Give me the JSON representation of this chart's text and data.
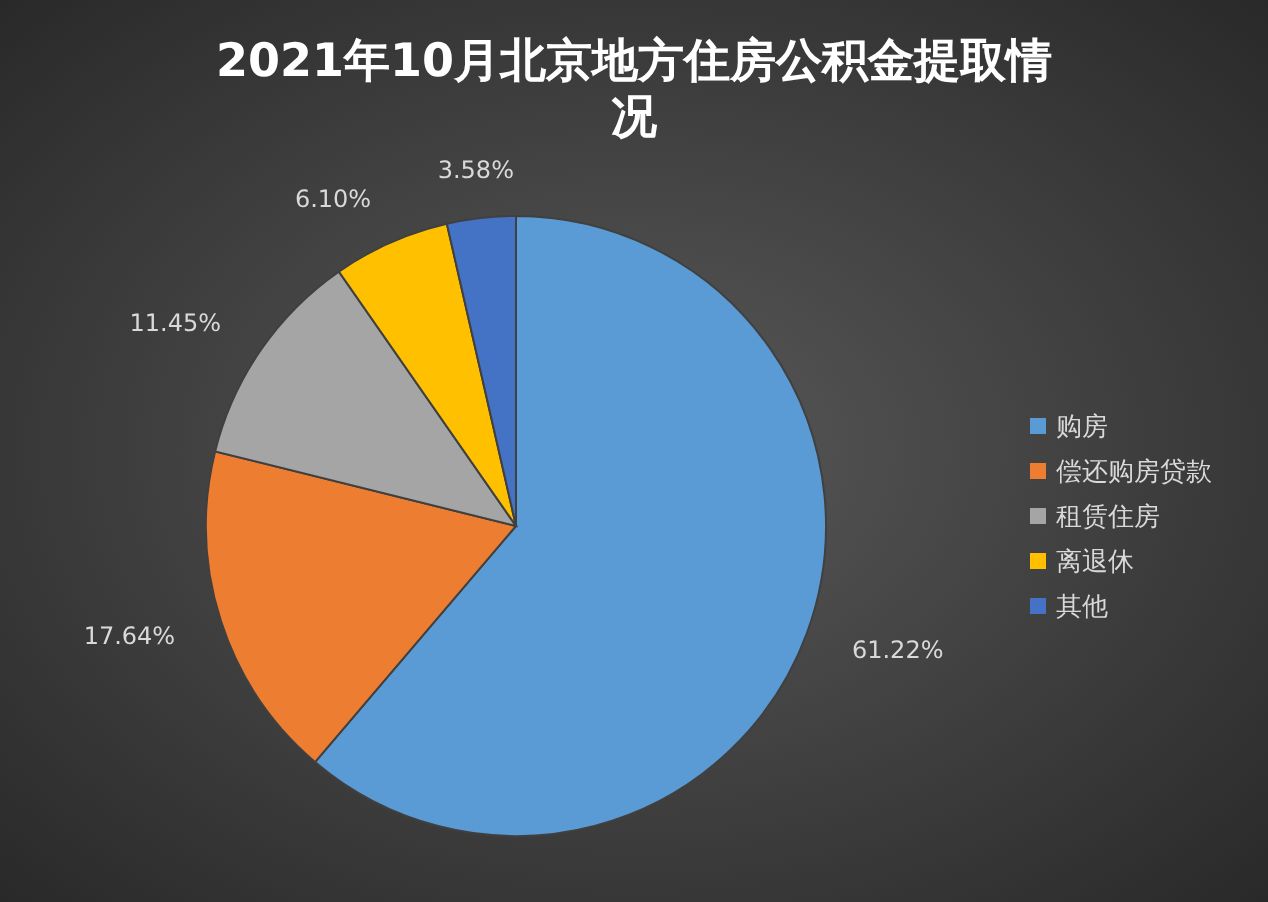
{
  "chart_data": {
    "type": "pie",
    "title": "2021年10月北京地方住房公积金提取情况",
    "categories": [
      "购房",
      "偿还购房贷款",
      "租赁住房",
      "离退休",
      "其他"
    ],
    "values": [
      61.22,
      17.64,
      11.45,
      6.1,
      3.58
    ],
    "colors": [
      "#5b9bd5",
      "#ed7d31",
      "#a5a5a5",
      "#ffc000",
      "#4472c4"
    ],
    "value_labels": [
      "61.22%",
      "17.64%",
      "11.45%",
      "6.10%",
      "3.58%"
    ],
    "legend": "right"
  }
}
